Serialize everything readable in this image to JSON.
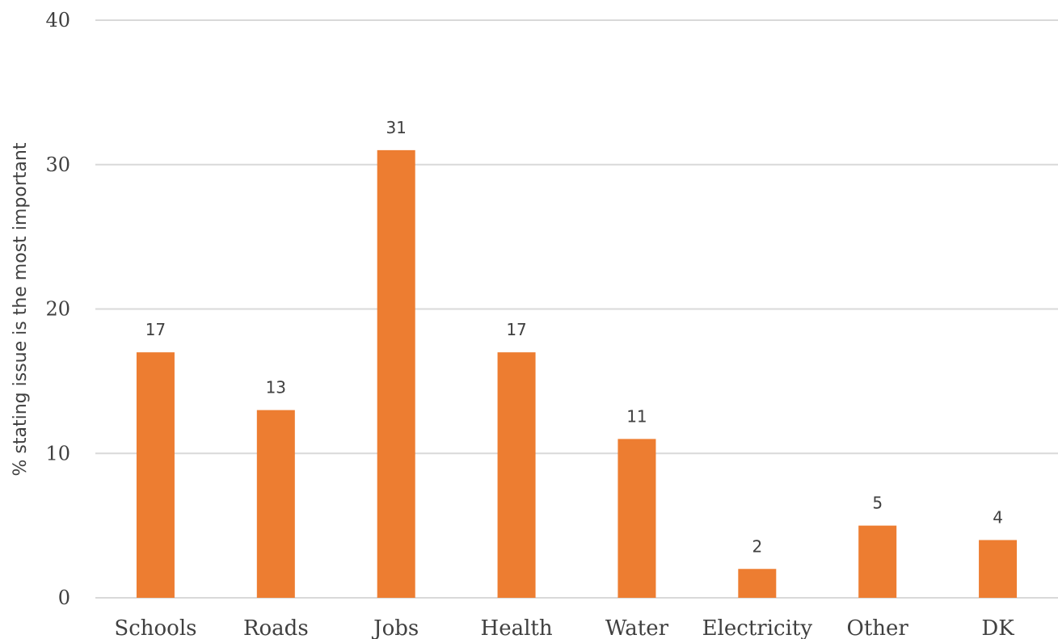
{
  "chart_data": {
    "type": "bar",
    "categories": [
      "Schools",
      "Roads",
      "Jobs",
      "Health",
      "Water",
      "Electricity",
      "Other",
      "DK"
    ],
    "values": [
      17,
      13,
      31,
      17,
      11,
      2,
      5,
      4
    ],
    "data_labels": [
      "17",
      "13",
      "31",
      "17",
      "11",
      "2",
      "5",
      "4"
    ],
    "title": "",
    "xlabel": "",
    "ylabel": "% stating issue is the most important",
    "ylim": [
      0,
      40
    ],
    "yticks": [
      0,
      10,
      20,
      30,
      40
    ],
    "ytick_labels": [
      "0",
      "10",
      "20",
      "30",
      "40"
    ],
    "grid": true,
    "legend": "none",
    "colors": {
      "bar": "#ED7D31",
      "grid": "#D9D9D9",
      "text": "#404040"
    }
  }
}
